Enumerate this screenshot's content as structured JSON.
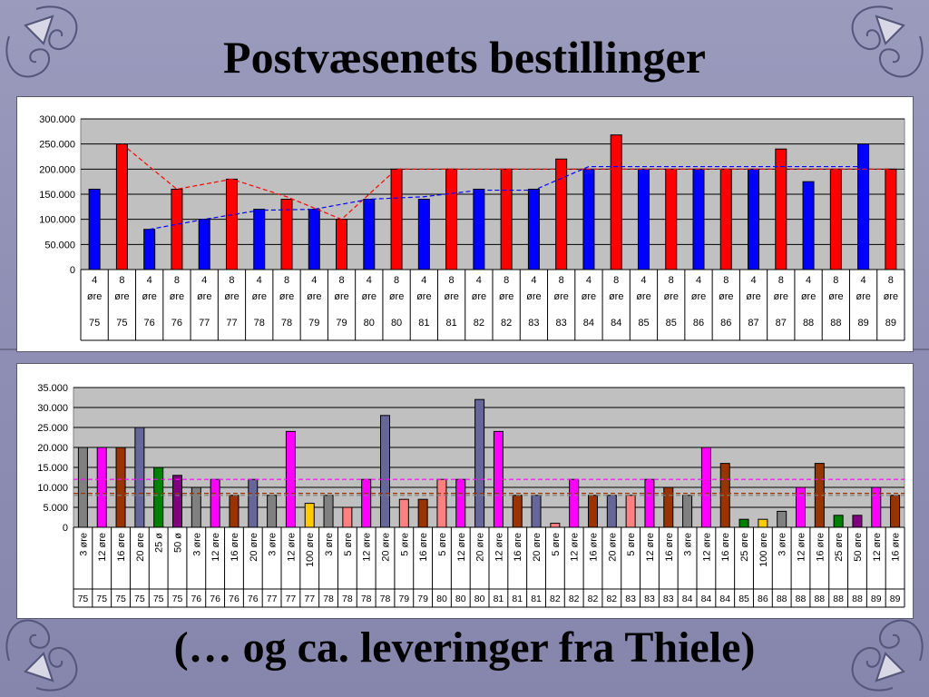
{
  "slide": {
    "title": "Postvæsenets bestillinger",
    "subtitle": "(… og ca. leveringer fra Thiele)"
  },
  "colors": {
    "background": "#9292b6",
    "plot_area": "#c0c0c0",
    "red_bar": "#ff0000",
    "blue_bar": "#0000ff"
  },
  "chart_data": [
    {
      "type": "bar",
      "title": "",
      "xlabel": "",
      "ylabel": "",
      "ylim": [
        0,
        300000
      ],
      "yticks": [
        "0",
        "50.000",
        "100.000",
        "150.000",
        "200.000",
        "250.000",
        "300.000"
      ],
      "grid": true,
      "legend": "none",
      "categories": [
        {
          "value": "4",
          "unit": "øre",
          "year": "75"
        },
        {
          "value": "8",
          "unit": "øre",
          "year": "75"
        },
        {
          "value": "4",
          "unit": "øre",
          "year": "76"
        },
        {
          "value": "8",
          "unit": "øre",
          "year": "76"
        },
        {
          "value": "4",
          "unit": "øre",
          "year": "77"
        },
        {
          "value": "8",
          "unit": "øre",
          "year": "77"
        },
        {
          "value": "4",
          "unit": "øre",
          "year": "78"
        },
        {
          "value": "8",
          "unit": "øre",
          "year": "78"
        },
        {
          "value": "4",
          "unit": "øre",
          "year": "79"
        },
        {
          "value": "8",
          "unit": "øre",
          "year": "79"
        },
        {
          "value": "4",
          "unit": "øre",
          "year": "80"
        },
        {
          "value": "8",
          "unit": "øre",
          "year": "80"
        },
        {
          "value": "4",
          "unit": "øre",
          "year": "81"
        },
        {
          "value": "8",
          "unit": "øre",
          "year": "81"
        },
        {
          "value": "4",
          "unit": "øre",
          "year": "82"
        },
        {
          "value": "8",
          "unit": "øre",
          "year": "82"
        },
        {
          "value": "4",
          "unit": "øre",
          "year": "83"
        },
        {
          "value": "8",
          "unit": "øre",
          "year": "83"
        },
        {
          "value": "4",
          "unit": "øre",
          "year": "84"
        },
        {
          "value": "8",
          "unit": "øre",
          "year": "84"
        },
        {
          "value": "4",
          "unit": "øre",
          "year": "85"
        },
        {
          "value": "8",
          "unit": "øre",
          "year": "85"
        },
        {
          "value": "4",
          "unit": "øre",
          "year": "86"
        },
        {
          "value": "8",
          "unit": "øre",
          "year": "86"
        },
        {
          "value": "4",
          "unit": "øre",
          "year": "87"
        },
        {
          "value": "8",
          "unit": "øre",
          "year": "87"
        },
        {
          "value": "4",
          "unit": "øre",
          "year": "88"
        },
        {
          "value": "8",
          "unit": "øre",
          "year": "88"
        },
        {
          "value": "4",
          "unit": "øre",
          "year": "89"
        },
        {
          "value": "8",
          "unit": "øre",
          "year": "89"
        }
      ],
      "values": [
        160000,
        250000,
        80000,
        160000,
        100000,
        180000,
        120000,
        140000,
        120000,
        100000,
        140000,
        200000,
        140000,
        200000,
        160000,
        200000,
        160000,
        220000,
        200000,
        268000,
        200000,
        200000,
        200000,
        200000,
        200000,
        240000,
        175000,
        200000,
        250000,
        200000
      ],
      "bar_colors": [
        "#0000ff",
        "#ff0000",
        "#0000ff",
        "#ff0000",
        "#0000ff",
        "#ff0000",
        "#0000ff",
        "#ff0000",
        "#0000ff",
        "#ff0000",
        "#0000ff",
        "#ff0000",
        "#0000ff",
        "#ff0000",
        "#0000ff",
        "#ff0000",
        "#0000ff",
        "#ff0000",
        "#0000ff",
        "#ff0000",
        "#0000ff",
        "#ff0000",
        "#0000ff",
        "#ff0000",
        "#0000ff",
        "#ff0000",
        "#0000ff",
        "#ff0000",
        "#0000ff",
        "#ff0000"
      ],
      "trend_lines": [
        {
          "color": "#ff0000",
          "style": "dashed",
          "points": [
            [
              1,
              250000
            ],
            [
              3,
              160000
            ],
            [
              5,
              180000
            ],
            [
              7,
              145000
            ],
            [
              9,
              100000
            ],
            [
              11,
              200000
            ],
            [
              13,
              200000
            ],
            [
              15,
              200000
            ],
            [
              17,
              200000
            ],
            [
              19,
              200000
            ],
            [
              21,
              200000
            ],
            [
              23,
              200000
            ],
            [
              25,
              200000
            ],
            [
              27,
              200000
            ],
            [
              29,
              200000
            ]
          ]
        },
        {
          "color": "#0000ff",
          "style": "dashed",
          "points": [
            [
              2,
              80000
            ],
            [
              4,
              100000
            ],
            [
              6,
              118000
            ],
            [
              8,
              120000
            ],
            [
              10,
              140000
            ],
            [
              12,
              145000
            ],
            [
              14,
              158000
            ],
            [
              16,
              158000
            ],
            [
              18,
              205000
            ],
            [
              20,
              205000
            ],
            [
              22,
              205000
            ],
            [
              24,
              205000
            ],
            [
              26,
              205000
            ],
            [
              28,
              205000
            ]
          ]
        }
      ]
    },
    {
      "type": "bar",
      "title": "",
      "xlabel": "",
      "ylabel": "",
      "ylim": [
        0,
        35000
      ],
      "yticks": [
        "0",
        "5.000",
        "10.000",
        "15.000",
        "20.000",
        "25.000",
        "30.000",
        "35.000"
      ],
      "grid": true,
      "legend": "none",
      "categories": [
        {
          "label": "3 øre",
          "year": "75"
        },
        {
          "label": "12 øre",
          "year": "75"
        },
        {
          "label": "16 øre",
          "year": "75"
        },
        {
          "label": "20 øre",
          "year": "75"
        },
        {
          "label": "25 ø",
          "year": "75"
        },
        {
          "label": "50 ø",
          "year": "75"
        },
        {
          "label": "3 øre",
          "year": "76"
        },
        {
          "label": "12 øre",
          "year": "76"
        },
        {
          "label": "16 øre",
          "year": "76"
        },
        {
          "label": "20 øre",
          "year": "76"
        },
        {
          "label": "3 øre",
          "year": "77"
        },
        {
          "label": "12 øre",
          "year": "77"
        },
        {
          "label": "100 øre",
          "year": "77"
        },
        {
          "label": "3 øre",
          "year": "78"
        },
        {
          "label": "5 øre",
          "year": "78"
        },
        {
          "label": "12 øre",
          "year": "78"
        },
        {
          "label": "20 øre",
          "year": "78"
        },
        {
          "label": "5 øre",
          "year": "79"
        },
        {
          "label": "16 øre",
          "year": "79"
        },
        {
          "label": "5 øre",
          "year": "80"
        },
        {
          "label": "12 øre",
          "year": "80"
        },
        {
          "label": "20 øre",
          "year": "80"
        },
        {
          "label": "12 øre",
          "year": "81"
        },
        {
          "label": "16 øre",
          "year": "81"
        },
        {
          "label": "20 øre",
          "year": "81"
        },
        {
          "label": "5 øre",
          "year": "82"
        },
        {
          "label": "12 øre",
          "year": "82"
        },
        {
          "label": "16 øre",
          "year": "82"
        },
        {
          "label": "20 øre",
          "year": "82"
        },
        {
          "label": "5 øre",
          "year": "83"
        },
        {
          "label": "12 øre",
          "year": "83"
        },
        {
          "label": "16 øre",
          "year": "83"
        },
        {
          "label": "3 øre",
          "year": "84"
        },
        {
          "label": "12 øre",
          "year": "84"
        },
        {
          "label": "16 øre",
          "year": "84"
        },
        {
          "label": "25 øre",
          "year": "85"
        },
        {
          "label": "100 øre",
          "year": "86"
        },
        {
          "label": "3 øre",
          "year": "88"
        },
        {
          "label": "12 øre",
          "year": "88"
        },
        {
          "label": "16 øre",
          "year": "88"
        },
        {
          "label": "25 øre",
          "year": "88"
        },
        {
          "label": "50 øre",
          "year": "88"
        },
        {
          "label": "12 øre",
          "year": "89"
        },
        {
          "label": "16 øre",
          "year": "89"
        }
      ],
      "values": [
        20000,
        20000,
        20000,
        25000,
        15000,
        13000,
        10000,
        12000,
        8000,
        12000,
        8000,
        24000,
        6000,
        8000,
        5000,
        12000,
        28000,
        7000,
        7000,
        12000,
        12000,
        32000,
        24000,
        8000,
        8000,
        1000,
        12000,
        8000,
        8000,
        8000,
        12000,
        10000,
        8000,
        20000,
        16000,
        2000,
        2000,
        4000,
        10000,
        16000,
        3000,
        3000,
        10000,
        8000
      ],
      "bar_colors": [
        "#808080",
        "#ff00ff",
        "#993300",
        "#666699",
        "#008000",
        "#800080",
        "#808080",
        "#ff00ff",
        "#993300",
        "#666699",
        "#808080",
        "#ff00ff",
        "#ffcc00",
        "#808080",
        "#ff8080",
        "#ff00ff",
        "#666699",
        "#ff8080",
        "#993300",
        "#ff8080",
        "#ff00ff",
        "#666699",
        "#ff00ff",
        "#993300",
        "#666699",
        "#ff8080",
        "#ff00ff",
        "#993300",
        "#666699",
        "#ff8080",
        "#ff00ff",
        "#993300",
        "#808080",
        "#ff00ff",
        "#993300",
        "#008000",
        "#ffcc00",
        "#808080",
        "#ff00ff",
        "#993300",
        "#008000",
        "#800080",
        "#ff00ff",
        "#993300"
      ],
      "reference_lines": [
        {
          "color": "#ff00ff",
          "style": "dashed",
          "y": 12000
        },
        {
          "color": "#993300",
          "style": "dashed",
          "y": 8500
        },
        {
          "color": "#808080",
          "style": "dashed",
          "y": 8000
        }
      ]
    }
  ]
}
